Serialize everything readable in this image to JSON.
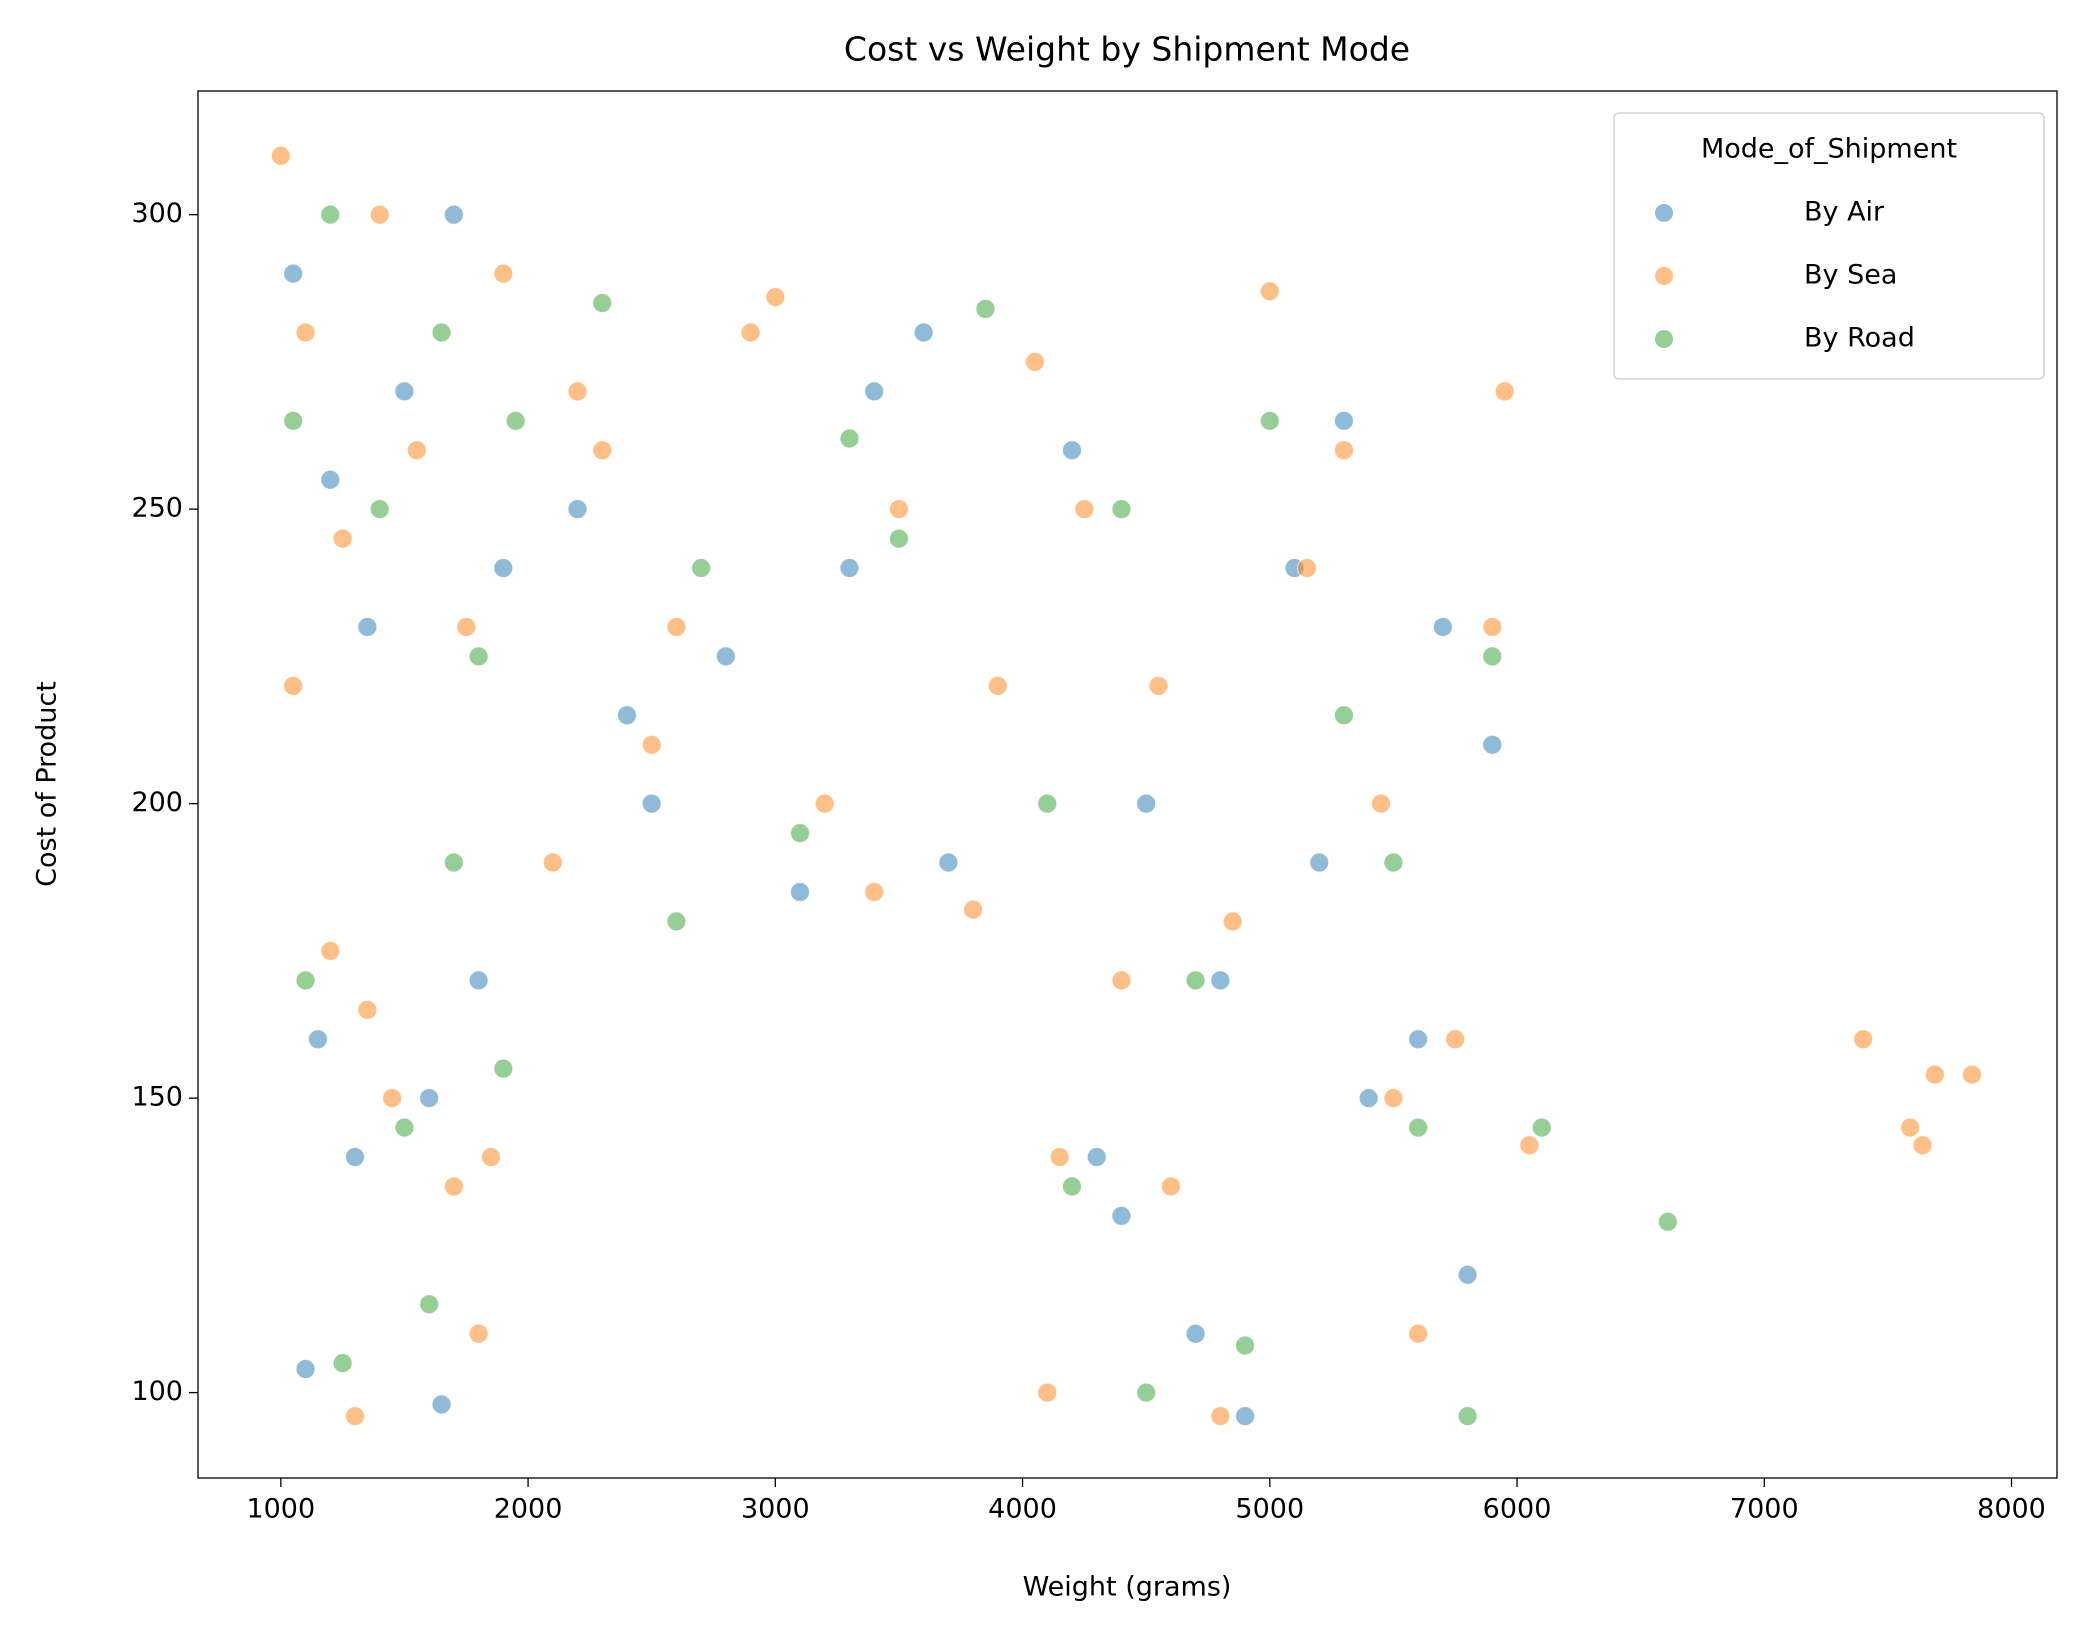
{
  "chart_data": {
    "type": "scatter",
    "title": "Cost vs Weight by Shipment Mode",
    "x_label": "Weight (grams)",
    "y_label": "Cost of Product",
    "legend_title": "Mode_of_Shipment",
    "legend_position": "upper right",
    "xlim": [
      665,
      8184
    ],
    "ylim": [
      85.5,
      321
    ],
    "xticks": [
      1000,
      2000,
      3000,
      4000,
      5000,
      6000,
      7000,
      8000
    ],
    "yticks": [
      100,
      150,
      200,
      250,
      300
    ],
    "grid": false,
    "marker_alpha": 0.5,
    "series": [
      {
        "name": "By Air",
        "color": "#1f77b4",
        "x": [
          1050,
          1200,
          1350,
          1500,
          1700,
          1900,
          1150,
          1600,
          1800,
          1300,
          2200,
          2500,
          2800,
          3100,
          3400,
          3700,
          2400,
          3300,
          3600,
          4200,
          4500,
          4800,
          5100,
          5400,
          5700,
          5900,
          4300,
          4700,
          5200,
          5600,
          4900,
          5300,
          5800,
          1100,
          1650,
          4400
        ],
        "values": [
          290,
          255,
          230,
          270,
          300,
          240,
          160,
          150,
          170,
          140,
          250,
          200,
          225,
          185,
          270,
          190,
          215,
          240,
          280,
          260,
          200,
          170,
          240,
          150,
          230,
          210,
          140,
          110,
          190,
          160,
          96,
          265,
          120,
          104,
          98,
          130
        ]
      },
      {
        "name": "By Sea",
        "color": "#ff7f0e",
        "x": [
          1000,
          1100,
          1250,
          1400,
          1550,
          1750,
          1900,
          1200,
          1450,
          1850,
          1050,
          1350,
          1700,
          1300,
          1800,
          2100,
          2300,
          2600,
          2900,
          3200,
          3500,
          3800,
          2500,
          3000,
          3400,
          3900,
          2200,
          4050,
          4250,
          4550,
          4850,
          5150,
          5450,
          5750,
          5950,
          4150,
          4600,
          5000,
          5500,
          5900,
          4100,
          4800,
          5600,
          6050,
          7400,
          7590,
          7640,
          7690,
          7840,
          4400,
          5300
        ],
        "values": [
          310,
          280,
          245,
          300,
          260,
          230,
          290,
          175,
          150,
          140,
          220,
          165,
          135,
          96,
          110,
          190,
          260,
          230,
          280,
          200,
          250,
          182,
          210,
          286,
          185,
          220,
          270,
          275,
          250,
          220,
          180,
          240,
          200,
          160,
          270,
          140,
          135,
          287,
          150,
          230,
          100,
          96,
          110,
          142,
          160,
          145,
          142,
          154,
          154,
          170,
          260
        ]
      },
      {
        "name": "By Road",
        "color": "#2ca02c",
        "x": [
          1050,
          1200,
          1400,
          1650,
          1800,
          1950,
          1100,
          1500,
          1700,
          1900,
          1250,
          2300,
          2700,
          3100,
          3500,
          3850,
          2600,
          3300,
          4100,
          4400,
          4700,
          5000,
          5300,
          5600,
          5900,
          4200,
          4900,
          5500,
          6100,
          6610,
          1600,
          4500,
          5800
        ],
        "values": [
          265,
          300,
          250,
          280,
          225,
          265,
          170,
          145,
          190,
          155,
          105,
          285,
          240,
          195,
          245,
          284,
          180,
          262,
          200,
          250,
          170,
          265,
          215,
          145,
          225,
          135,
          108,
          190,
          145,
          129,
          115,
          100,
          96
        ]
      }
    ]
  }
}
